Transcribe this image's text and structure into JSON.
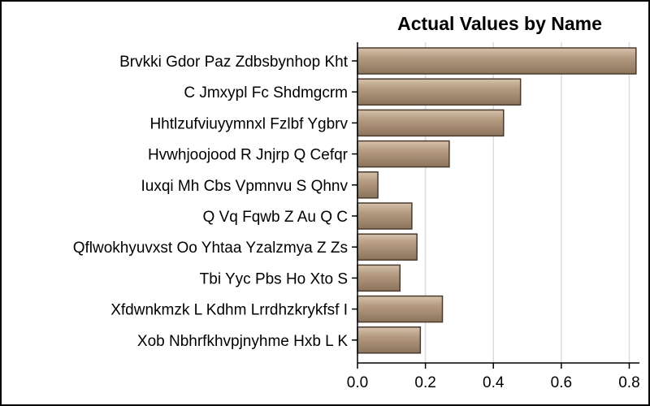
{
  "chart_data": {
    "type": "bar",
    "orientation": "horizontal",
    "title": "Actual Values by Name",
    "xlabel": "",
    "ylabel": "",
    "categories": [
      "Brvkki Gdor Paz Zdbsbynhop Kht",
      "C Jmxypl Fc Shdmgcrm",
      "Hhtlzufviuyymnxl Fzlbf Ygbrv",
      "Hvwhjoojood R Jnjrp  Q Cefqr",
      "Iuxqi Mh Cbs Vpmnvu S Qhnv",
      "Q Vq  Fqwb  Z Au  Q   C",
      "Qflwokhyuvxst Oo  Yhtaa Yzalzmya  Z Zs",
      "Tbi Yyc Pbs  Ho Xto S",
      "Xfdwnkmzk L  Kdhm Lrrdhzkrykfsf I",
      "Xob Nbhrfkhvpjnyhme Hxb L K"
    ],
    "values": [
      0.82,
      0.48,
      0.43,
      0.27,
      0.06,
      0.16,
      0.175,
      0.125,
      0.25,
      0.185
    ],
    "xlim": [
      0,
      0.83
    ],
    "xticks": [
      "0.0",
      "0.2",
      "0.4",
      "0.6",
      "0.8"
    ],
    "xtick_values": [
      0,
      0.2,
      0.4,
      0.6,
      0.8
    ],
    "grid": "vertical",
    "legend": "none",
    "colors": {
      "bar_fill": "#b59c82",
      "bar_highlight": "#d6c2ad",
      "bar_shadow": "#8c735c",
      "bar_stroke": "#4a3a2c",
      "grid": "#dddddd",
      "axis": "#000000"
    }
  }
}
